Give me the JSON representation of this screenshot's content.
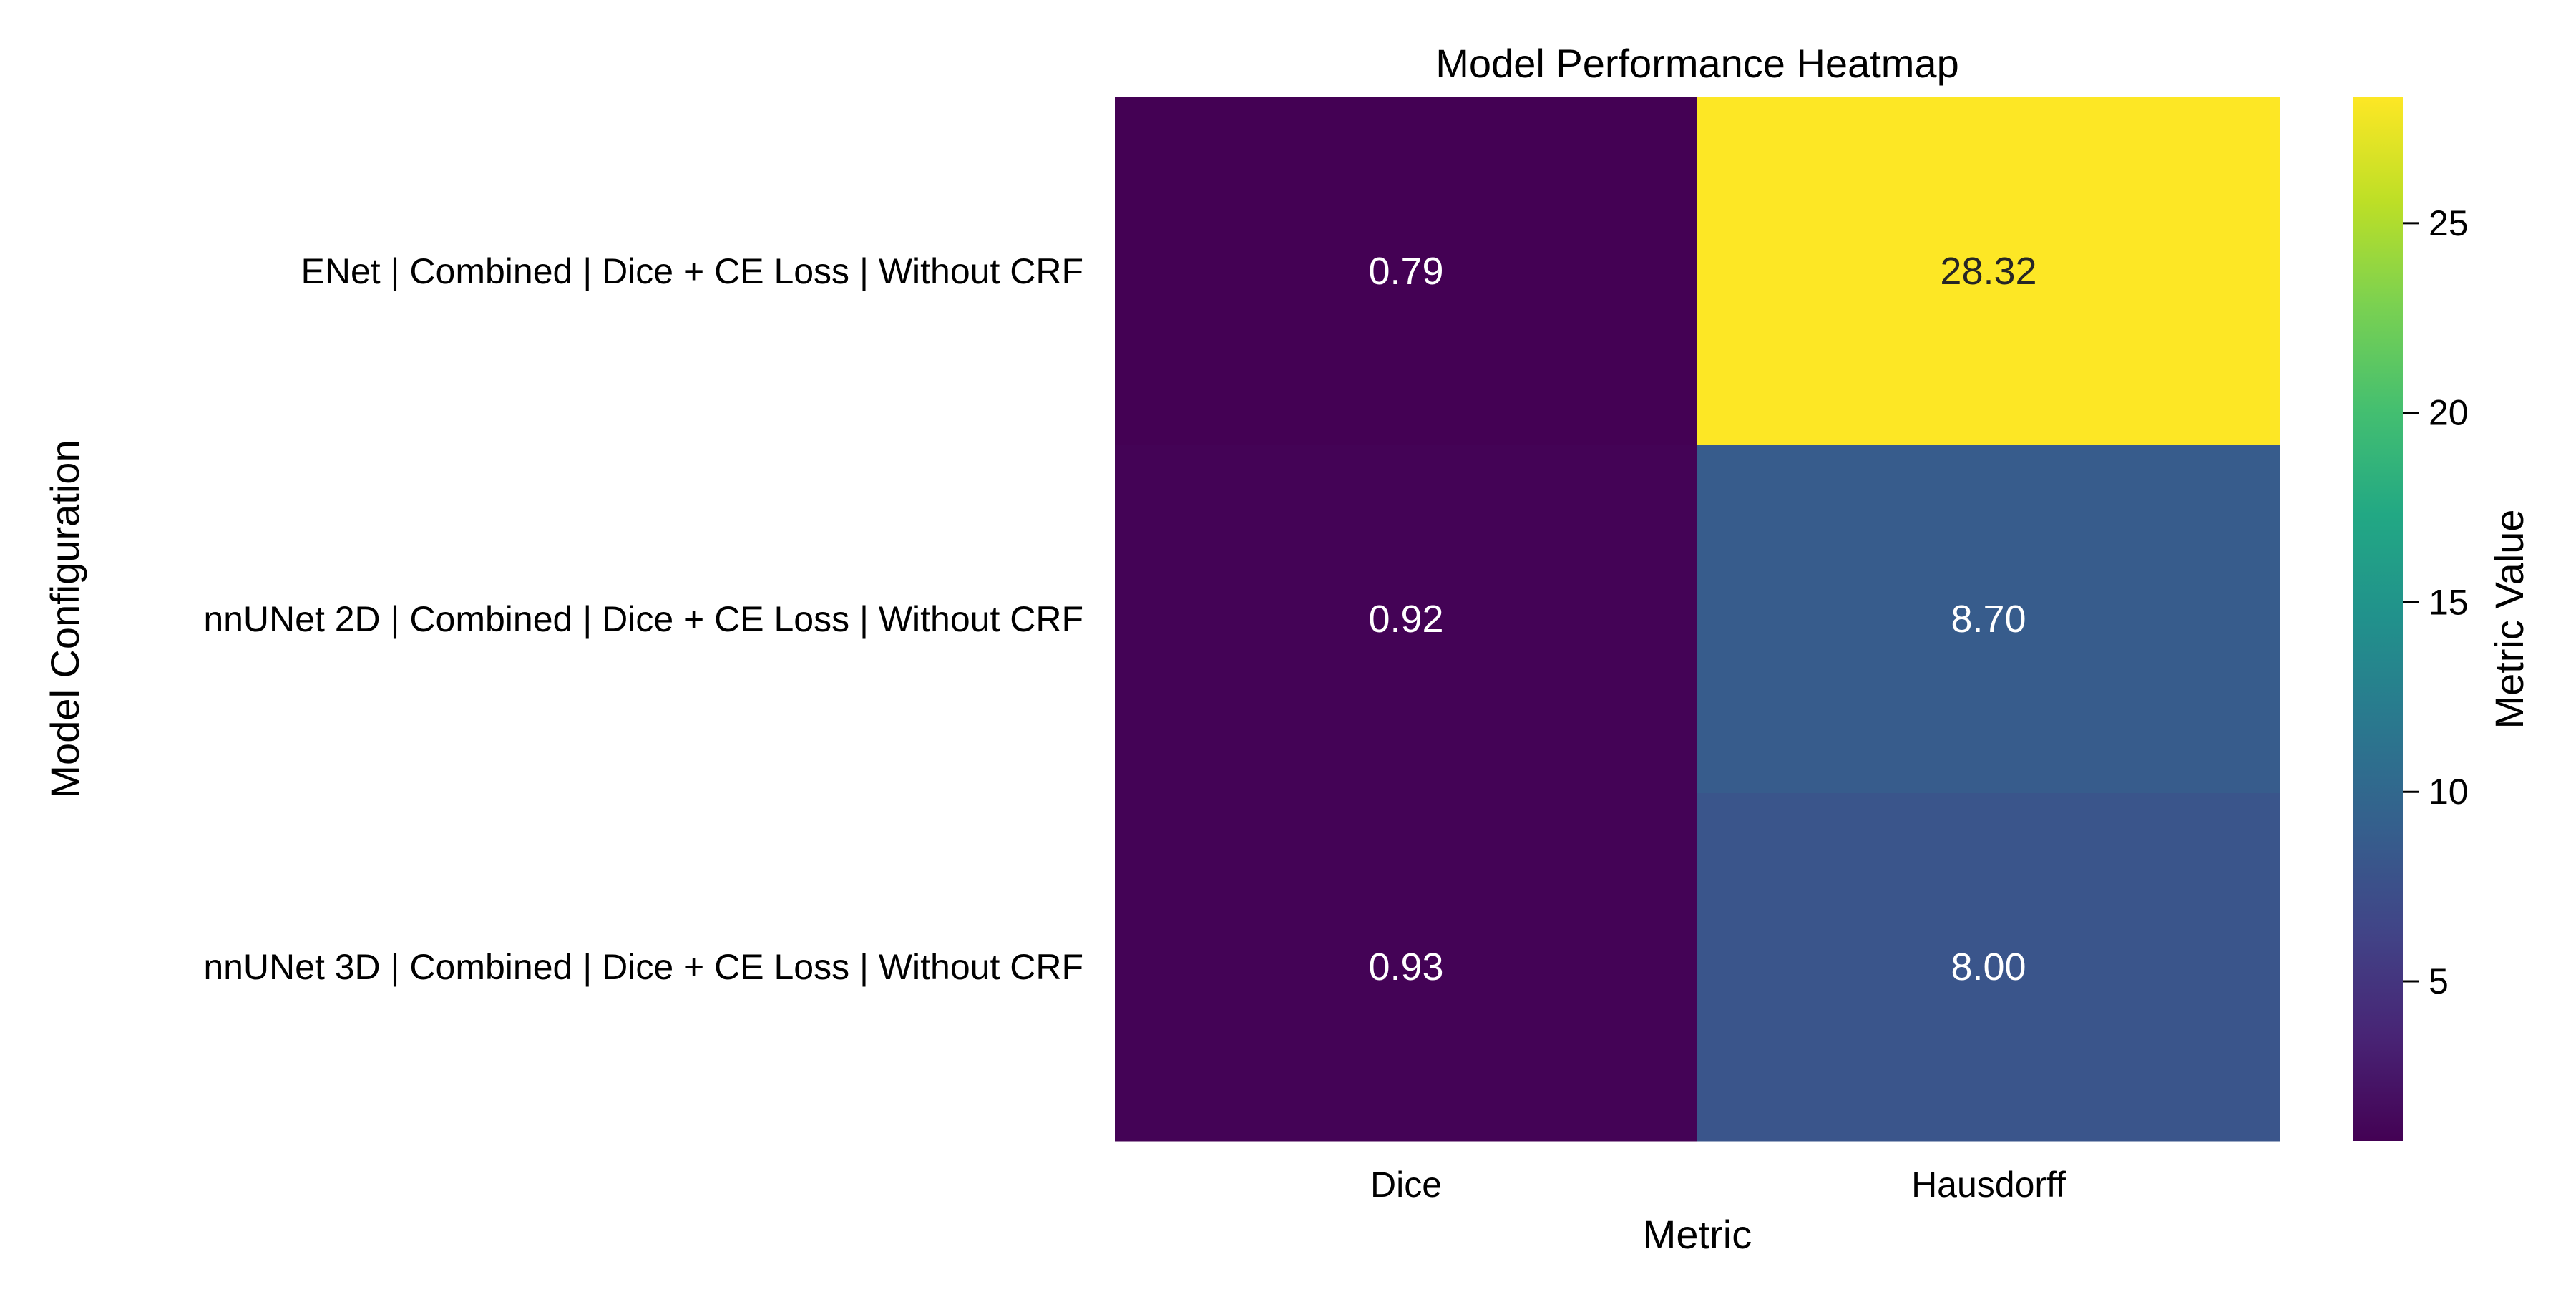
{
  "chart_data": {
    "type": "heatmap",
    "title": "Model Performance Heatmap",
    "xlabel": "Metric",
    "ylabel": "Model Configuration",
    "x_categories": [
      "Dice",
      "Hausdorff"
    ],
    "y_categories": [
      "ENet | Combined | Dice + CE Loss | Without CRF",
      "nnUNet 2D | Combined | Dice + CE Loss | Without CRF",
      "nnUNet 3D | Combined | Dice + CE Loss | Without CRF"
    ],
    "values": [
      [
        0.79,
        28.32
      ],
      [
        0.92,
        8.7
      ],
      [
        0.93,
        8.0
      ]
    ],
    "cell_labels": [
      [
        "0.79",
        "28.32"
      ],
      [
        "0.92",
        "8.70"
      ],
      [
        "0.93",
        "8.00"
      ]
    ],
    "colormap": "viridis",
    "color_range": [
      0.79,
      28.32
    ],
    "colorbar": {
      "label": "Metric Value",
      "ticks": [
        5,
        10,
        15,
        20,
        25
      ],
      "tick_labels": [
        "5",
        "10",
        "15",
        "20",
        "25"
      ],
      "placement": "right"
    },
    "grid": false
  }
}
